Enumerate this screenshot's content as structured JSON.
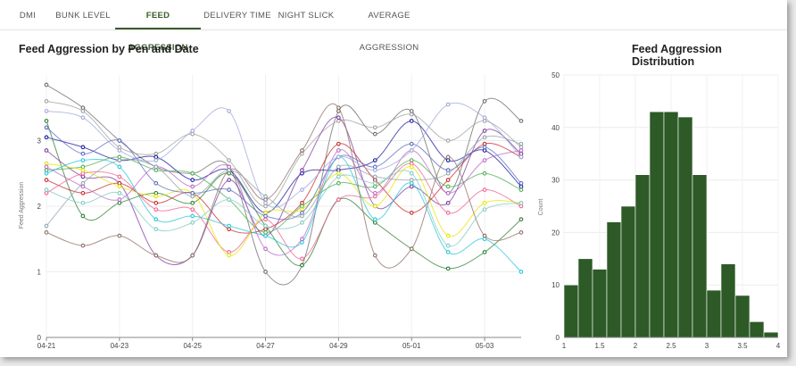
{
  "tabs": [
    {
      "label": "DMI",
      "active": false
    },
    {
      "label": "BUNK LEVEL",
      "active": false
    },
    {
      "label": "FEED AGGRESSION",
      "active": true
    },
    {
      "label": "DELIVERY TIME",
      "active": false
    },
    {
      "label": "NIGHT SLICK",
      "active": false
    },
    {
      "label": "AVERAGE AGGRESSION",
      "active": false
    }
  ],
  "accent_color": "#3a5a2b",
  "left_panel": {
    "title": "Feed Aggression by Pen and Date"
  },
  "right_panel": {
    "title": "Feed Aggression Distribution"
  },
  "chart_data": [
    {
      "type": "line",
      "title": "Feed Aggression by Pen and Date",
      "xlabel": "",
      "ylabel": "Feed Aggression",
      "ylim": [
        0,
        4
      ],
      "yticks": [
        0,
        1,
        2,
        3
      ],
      "xticks": [
        "04-21",
        "04-23",
        "04-25",
        "04-27",
        "04-29",
        "05-01",
        "05-03"
      ],
      "x": [
        "04-21",
        "04-22",
        "04-23",
        "04-24",
        "04-25",
        "04-26",
        "04-27",
        "04-28",
        "04-29",
        "04-30",
        "05-01",
        "05-02",
        "05-03",
        "05-04"
      ],
      "grid": true,
      "legend": "none",
      "series": [
        {
          "color": "#6b6b6b",
          "values": [
            3.85,
            3.5,
            3.0,
            2.6,
            2.5,
            2.6,
            1.0,
            1.1,
            3.45,
            3.1,
            3.45,
            2.2,
            3.6,
            3.3
          ]
        },
        {
          "color": "#a0a0a0",
          "values": [
            3.6,
            3.45,
            2.9,
            2.8,
            3.1,
            2.7,
            2.0,
            2.8,
            3.3,
            3.2,
            3.4,
            3.0,
            3.3,
            2.9
          ]
        },
        {
          "color": "#1a1aa0",
          "values": [
            3.05,
            2.9,
            2.7,
            2.75,
            2.4,
            2.55,
            1.9,
            2.5,
            2.55,
            2.7,
            3.3,
            2.7,
            2.85,
            2.3
          ]
        },
        {
          "color": "#2e7d32",
          "values": [
            3.3,
            1.85,
            2.05,
            2.2,
            2.05,
            2.5,
            1.7,
            1.1,
            2.1,
            1.75,
            1.35,
            1.05,
            1.3,
            1.8
          ]
        },
        {
          "color": "#7a3b9e",
          "values": [
            2.85,
            2.45,
            2.35,
            1.25,
            1.25,
            2.4,
            1.55,
            2.55,
            3.35,
            2.0,
            2.3,
            2.05,
            3.15,
            2.8
          ]
        },
        {
          "color": "#c82828",
          "values": [
            2.4,
            2.2,
            2.35,
            2.05,
            2.2,
            1.65,
            1.65,
            2.05,
            2.95,
            2.4,
            1.9,
            2.4,
            2.95,
            2.75
          ]
        },
        {
          "color": "#4caf50",
          "values": [
            2.55,
            2.6,
            2.75,
            2.55,
            2.5,
            2.1,
            1.6,
            2.0,
            2.35,
            2.3,
            2.7,
            2.3,
            2.5,
            2.25
          ]
        },
        {
          "color": "#f06292",
          "values": [
            2.2,
            2.5,
            2.45,
            1.95,
            1.95,
            1.3,
            1.8,
            1.2,
            2.1,
            2.15,
            2.65,
            1.9,
            2.25,
            2.0
          ]
        },
        {
          "color": "#e6e600",
          "values": [
            2.65,
            2.55,
            2.3,
            2.15,
            2.2,
            1.25,
            1.9,
            1.95,
            2.5,
            2.0,
            2.6,
            1.55,
            2.05,
            2.05
          ]
        },
        {
          "color": "#26c6da",
          "values": [
            2.5,
            2.7,
            2.6,
            1.8,
            1.85,
            1.7,
            1.55,
            1.45,
            2.75,
            1.8,
            2.35,
            1.3,
            1.5,
            1.0
          ]
        },
        {
          "color": "#5c6bc0",
          "values": [
            3.2,
            2.8,
            3.0,
            2.35,
            2.2,
            2.25,
            1.85,
            1.9,
            2.75,
            2.6,
            2.95,
            2.55,
            2.9,
            2.35
          ]
        },
        {
          "color": "#ba68c8",
          "values": [
            2.6,
            2.3,
            2.1,
            2.6,
            2.3,
            2.6,
            1.35,
            1.5,
            2.85,
            2.2,
            2.85,
            2.2,
            2.7,
            2.85
          ]
        },
        {
          "color": "#8d6e63",
          "values": [
            1.6,
            1.4,
            1.55,
            1.25,
            1.25,
            2.55,
            2.1,
            2.85,
            3.5,
            1.25,
            1.35,
            2.75,
            1.55,
            1.6
          ]
        },
        {
          "color": "#90a4ae",
          "values": [
            1.7,
            2.35,
            2.7,
            2.6,
            2.15,
            2.55,
            2.15,
            1.85,
            2.6,
            2.45,
            2.4,
            2.5,
            3.05,
            2.95
          ]
        },
        {
          "color": "#9fa8da",
          "values": [
            3.45,
            3.35,
            2.85,
            2.7,
            3.15,
            3.45,
            2.05,
            2.25,
            2.75,
            2.55,
            2.85,
            3.55,
            3.35,
            2.75
          ]
        },
        {
          "color": "#80cbc4",
          "values": [
            2.25,
            2.05,
            2.2,
            1.65,
            1.75,
            2.1,
            1.7,
            1.75,
            2.45,
            2.35,
            2.5,
            1.4,
            1.95,
            2.05
          ]
        }
      ]
    },
    {
      "type": "bar",
      "title": "Feed Aggression Distribution",
      "xlabel": "",
      "ylabel": "Count",
      "ylim": [
        0,
        50
      ],
      "yticks": [
        0,
        10,
        20,
        30,
        40,
        50
      ],
      "xlim": [
        1,
        4
      ],
      "xticks": [
        "1",
        "1.5",
        "2",
        "2.5",
        "3",
        "3.5",
        "4"
      ],
      "bin_edges": [
        1.0,
        1.2,
        1.4,
        1.6,
        1.8,
        2.0,
        2.2,
        2.4,
        2.6,
        2.8,
        3.0,
        3.2,
        3.4,
        3.6,
        3.8,
        4.0
      ],
      "values": [
        10,
        15,
        13,
        22,
        25,
        31,
        43,
        43,
        42,
        31,
        9,
        14,
        8,
        3,
        1
      ],
      "color": "#2d5a27",
      "grid": true
    }
  ]
}
